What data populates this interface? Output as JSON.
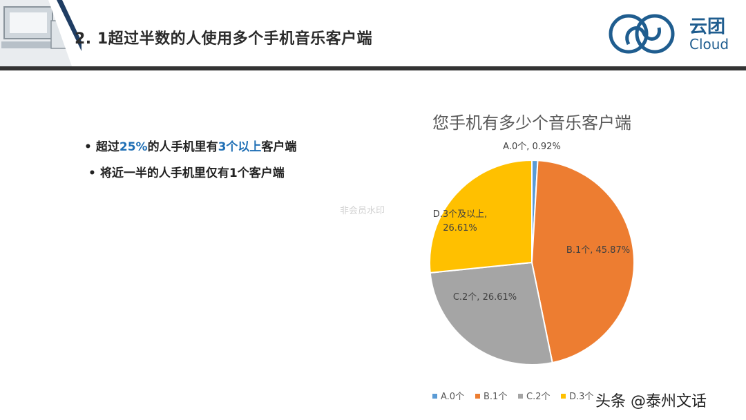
{
  "header": {
    "title": "2. 1超过半数的人使用多个手机音乐客户端"
  },
  "logo": {
    "cn": "云团",
    "en": "Cloud"
  },
  "bullets": [
    {
      "prefix": "超过",
      "hl1": "25%",
      "mid": "的人手机里有",
      "hl2": "3个以上",
      "suffix": "客户端"
    },
    {
      "text": "将近一半的人手机里仅有1个客户端"
    }
  ],
  "watermark": "非会员水印",
  "credit": "头条 @泰州文话",
  "colors": {
    "accent": "#1f6fb5",
    "A": "#5b9bd5",
    "B": "#ed7d31",
    "C": "#a5a5a5",
    "D": "#ffc000"
  },
  "chart_data": {
    "type": "pie",
    "title": "您手机有多少个音乐客户端",
    "categories": [
      "A.0个",
      "B.1个",
      "C.2个",
      "D.3个及以上"
    ],
    "values": [
      0.92,
      45.87,
      26.61,
      26.61
    ],
    "data_labels": [
      "A.0个, 0.92%",
      "B.1个, 45.87%",
      "C.2个, 26.61%",
      "D.3个及以上, 26.61%"
    ],
    "legend": [
      "A.0个",
      "B.1个",
      "C.2个",
      "D.3个"
    ],
    "legend_position": "bottom"
  }
}
